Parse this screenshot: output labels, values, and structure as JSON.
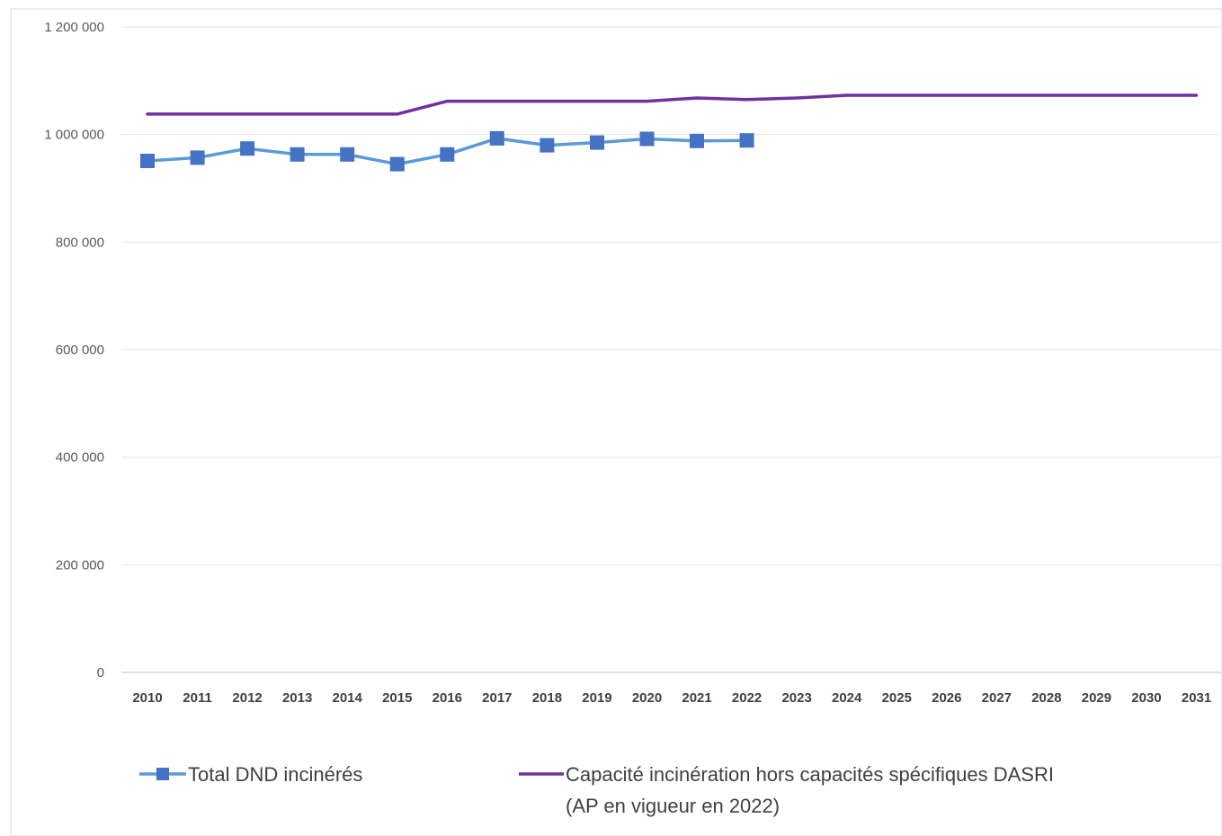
{
  "chart_data": {
    "type": "line",
    "x": [
      "2010",
      "2011",
      "2012",
      "2013",
      "2014",
      "2015",
      "2016",
      "2017",
      "2018",
      "2019",
      "2020",
      "2021",
      "2022",
      "2023",
      "2024",
      "2025",
      "2026",
      "2027",
      "2028",
      "2029",
      "2030",
      "2031"
    ],
    "ylim": [
      0,
      1200000
    ],
    "yticks": [
      0,
      200000,
      400000,
      600000,
      800000,
      1000000,
      1200000
    ],
    "ytick_labels": [
      "0",
      "200 000",
      "400 000",
      "600 000",
      "800 000",
      "1 000 000",
      "1 200 000"
    ],
    "grid": true,
    "legend_position": "bottom",
    "series": [
      {
        "name": "Total DND incinérés",
        "color": "#5b9bd5",
        "marker_color": "#4472c4",
        "marker": "square",
        "values": [
          951000,
          957000,
          974000,
          963000,
          963000,
          945000,
          963000,
          993000,
          980000,
          985000,
          992000,
          988000,
          989000,
          null,
          null,
          null,
          null,
          null,
          null,
          null,
          null,
          null
        ]
      },
      {
        "name": "Capacité incinération hors capacités spécifiques DASRI",
        "name_line2": "(AP en vigueur en 2022)",
        "color": "#7030a0",
        "marker": "none",
        "values": [
          1038000,
          1038000,
          1038000,
          1038000,
          1038000,
          1038000,
          1062000,
          1062000,
          1062000,
          1062000,
          1062000,
          1068000,
          1065000,
          1068000,
          1073000,
          1073000,
          1073000,
          1073000,
          1073000,
          1073000,
          1073000,
          1073000
        ]
      }
    ]
  }
}
